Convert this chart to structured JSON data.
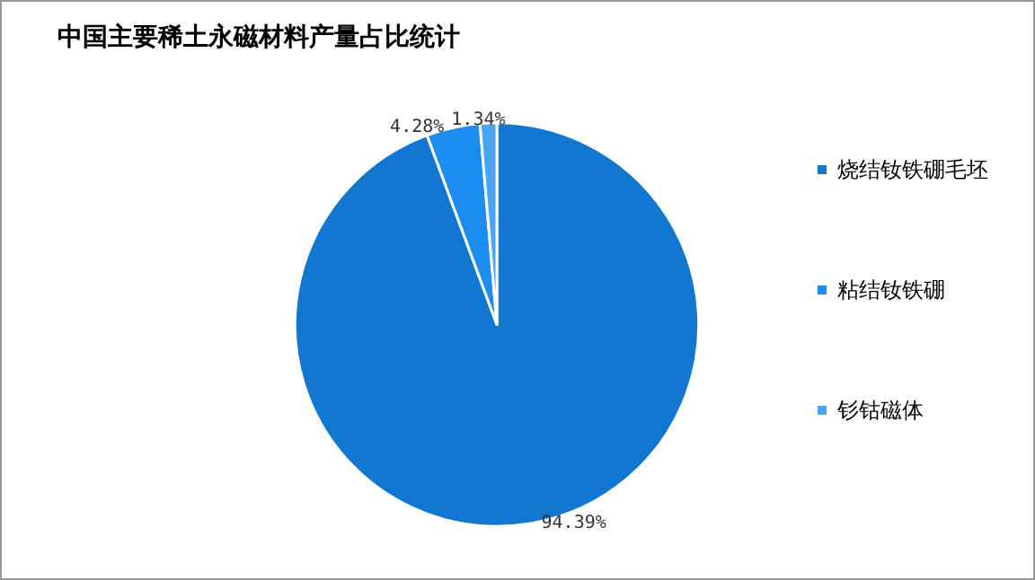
{
  "chart_data": {
    "type": "pie",
    "title": "中国主要稀土永磁材料产量占比统计",
    "categories": [
      "烧结钕铁硼毛坯",
      "粘结钕铁硼",
      "钐钴磁体"
    ],
    "values": [
      94.39,
      4.28,
      1.34
    ],
    "colors": [
      "#1177d1",
      "#1b8cf0",
      "#4aa6f5"
    ],
    "value_labels": [
      "94.39%",
      "4.28%",
      "1.34%"
    ],
    "legend": "right"
  }
}
